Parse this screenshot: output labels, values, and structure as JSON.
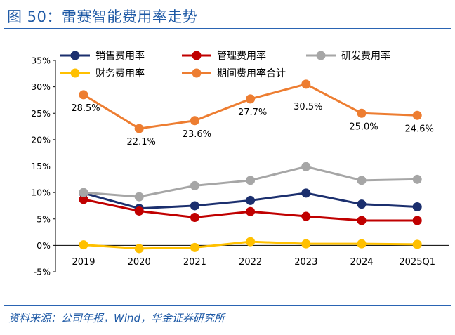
{
  "header": {
    "title": "图 50：雷赛智能费用率走势"
  },
  "footer": {
    "source": "资料来源：公司年报，Wind，华金证券研究所"
  },
  "chart_data": {
    "type": "line",
    "categories": [
      "2019",
      "2020",
      "2021",
      "2022",
      "2023",
      "2024",
      "2025Q1"
    ],
    "ylim": [
      -5,
      35
    ],
    "yticks": [
      "35%",
      "30%",
      "25%",
      "20%",
      "15%",
      "10%",
      "5%",
      "0%",
      "-5%"
    ],
    "ytick_values": [
      35,
      30,
      25,
      20,
      15,
      10,
      5,
      0,
      -5
    ],
    "grid": false,
    "legend_position": "top",
    "series": [
      {
        "name": "销售费用率",
        "color": "#1b2f6e",
        "values": [
          9.9,
          7.0,
          7.5,
          8.5,
          9.9,
          7.8,
          7.3
        ]
      },
      {
        "name": "管理费用率",
        "color": "#c00000",
        "values": [
          8.7,
          6.5,
          5.3,
          6.4,
          5.5,
          4.7,
          4.7
        ]
      },
      {
        "name": "研发费用率",
        "color": "#a6a6a6",
        "values": [
          10.0,
          9.2,
          11.3,
          12.3,
          14.9,
          12.3,
          12.5
        ]
      },
      {
        "name": "财务费用率",
        "color": "#ffc000",
        "values": [
          0.1,
          -0.6,
          -0.4,
          0.7,
          0.3,
          0.3,
          0.2
        ]
      },
      {
        "name": "期间费用率合计",
        "color": "#ed7d31",
        "values": [
          28.5,
          22.1,
          23.6,
          27.7,
          30.5,
          25.0,
          24.6
        ],
        "labels": [
          "28.5%",
          "22.1%",
          "23.6%",
          "27.7%",
          "30.5%",
          "25.0%",
          "24.6%"
        ]
      }
    ]
  }
}
